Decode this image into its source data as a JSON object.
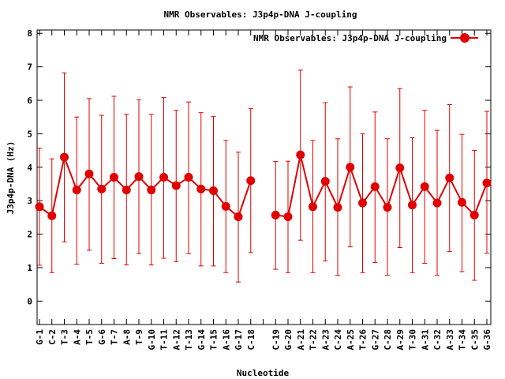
{
  "chart_data": {
    "type": "line",
    "title": "NMR Observables: J3p4p-DNA J-coupling",
    "xlabel": "Nucleotide",
    "ylabel": "J3p4p-DNA (Hz)",
    "ylim": [
      -0.7,
      8.1
    ],
    "yticks": [
      0,
      1,
      2,
      3,
      4,
      5,
      6,
      7,
      8
    ],
    "grid": false,
    "legend_position": "top-right",
    "categories": [
      "G-1",
      "C-2",
      "T-3",
      "A-4",
      "T-5",
      "G-6",
      "T-7",
      "A-8",
      "T-9",
      "G-10",
      "T-11",
      "A-12",
      "T-13",
      "G-14",
      "T-15",
      "A-16",
      "G-17",
      "C-18",
      "",
      "C-19",
      "G-20",
      "A-21",
      "T-22",
      "A-23",
      "C-24",
      "A-25",
      "T-26",
      "G-27",
      "C-28",
      "A-29",
      "T-30",
      "A-31",
      "C-32",
      "A-33",
      "T-34",
      "C-35",
      "G-36"
    ],
    "series": [
      {
        "name": "NMR Observables: J3p4p-DNA J-coupling",
        "color": "#e00000",
        "segments": [
          {
            "x_index_start": 0,
            "values": [
              2.82,
              2.55,
              4.3,
              3.32,
              3.8,
              3.35,
              3.7,
              3.32,
              3.72,
              3.32,
              3.7,
              3.45,
              3.7,
              3.35,
              3.3,
              2.83,
              2.52,
              3.6
            ],
            "err_low": [
              1.07,
              0.85,
              1.77,
              1.1,
              1.52,
              1.13,
              1.27,
              1.08,
              1.42,
              1.08,
              1.28,
              1.18,
              1.42,
              1.05,
              1.05,
              0.85,
              0.57,
              1.45
            ],
            "err_high": [
              4.57,
              4.25,
              6.82,
              5.5,
              6.05,
              5.55,
              6.12,
              5.58,
              6.02,
              5.58,
              6.08,
              5.7,
              5.95,
              5.63,
              5.52,
              4.8,
              4.45,
              5.75
            ]
          },
          {
            "x_index_start": 19,
            "values": [
              2.57,
              2.52,
              4.37,
              2.82,
              3.58,
              2.8,
              4.0,
              2.93,
              3.42,
              2.8,
              3.98,
              2.87,
              3.42,
              2.93,
              3.68,
              2.95,
              2.57,
              3.53
            ],
            "err_low": [
              0.95,
              0.85,
              1.82,
              0.85,
              1.2,
              0.77,
              1.62,
              0.85,
              1.15,
              0.77,
              1.6,
              0.85,
              1.13,
              0.77,
              1.48,
              0.88,
              0.62,
              1.43
            ],
            "err_high": [
              4.17,
              4.18,
              6.9,
              4.8,
              5.93,
              4.85,
              6.4,
              5.0,
              5.65,
              4.85,
              6.35,
              4.88,
              5.7,
              5.1,
              5.87,
              4.98,
              4.5,
              5.67
            ]
          }
        ]
      }
    ]
  }
}
